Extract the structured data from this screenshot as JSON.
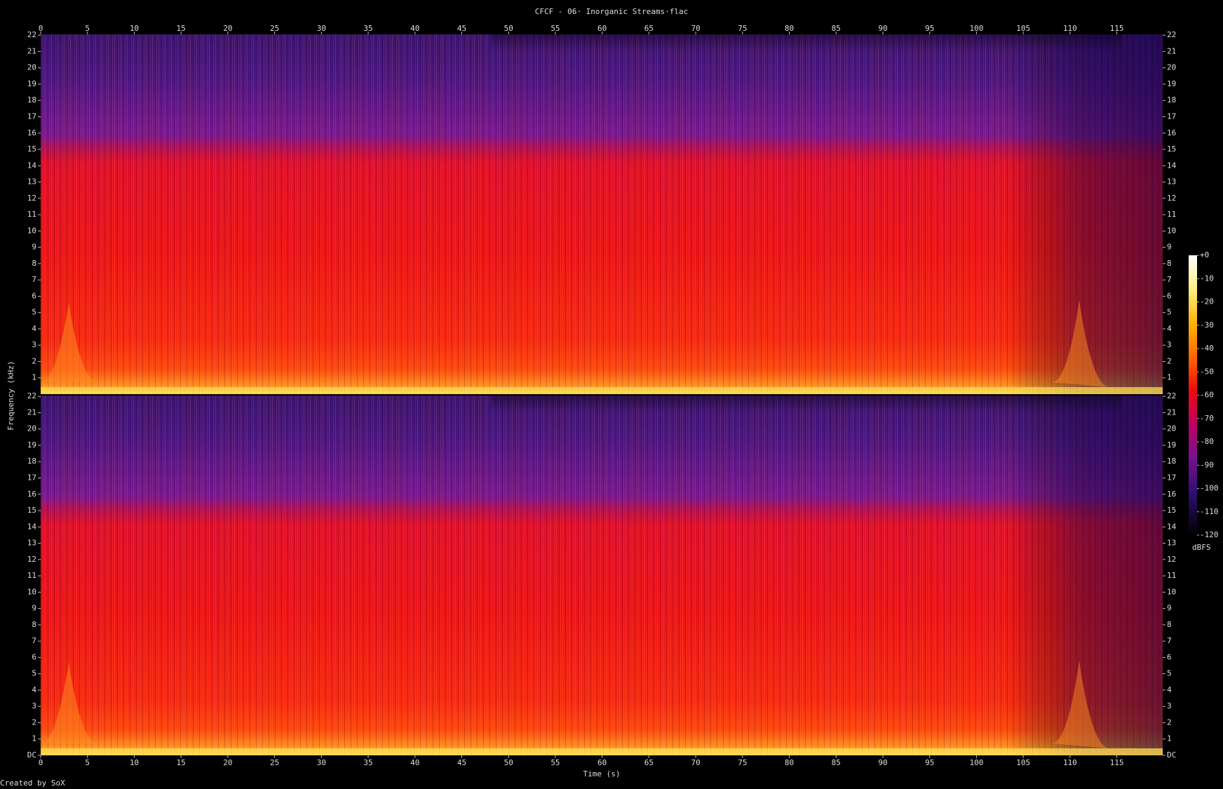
{
  "chart_data": {
    "type": "spectrogram",
    "title": "CFCF - 06· Inorganic Streams·flac",
    "x_label": "Time (s)",
    "y_label": "Frequency (kHz)",
    "footer": "Created by SoX",
    "xlim": [
      0,
      119.9
    ],
    "xticks": [
      0,
      5,
      10,
      15,
      20,
      25,
      30,
      35,
      40,
      45,
      50,
      55,
      60,
      65,
      70,
      75,
      80,
      85,
      90,
      95,
      100,
      105,
      110,
      115
    ],
    "ylim": [
      0,
      22.05
    ],
    "panels": [
      {
        "yticks": [
          1,
          2,
          3,
          4,
          5,
          6,
          7,
          8,
          9,
          10,
          11,
          12,
          13,
          14,
          15,
          16,
          17,
          18,
          19,
          20,
          21,
          22
        ]
      },
      {
        "yticks": [
          {
            "value": 0,
            "label": "DC"
          },
          1,
          2,
          3,
          4,
          5,
          6,
          7,
          8,
          9,
          10,
          11,
          12,
          13,
          14,
          15,
          16,
          17,
          18,
          19,
          20,
          21,
          22
        ]
      }
    ],
    "colorbar": {
      "label": "dBFS",
      "lim": [
        -120,
        0
      ],
      "ticks": [
        {
          "value": 0,
          "label": "+0"
        },
        -10,
        -20,
        -30,
        -40,
        -50,
        -60,
        -70,
        -80,
        -90,
        -100,
        -110,
        -120
      ]
    }
  }
}
